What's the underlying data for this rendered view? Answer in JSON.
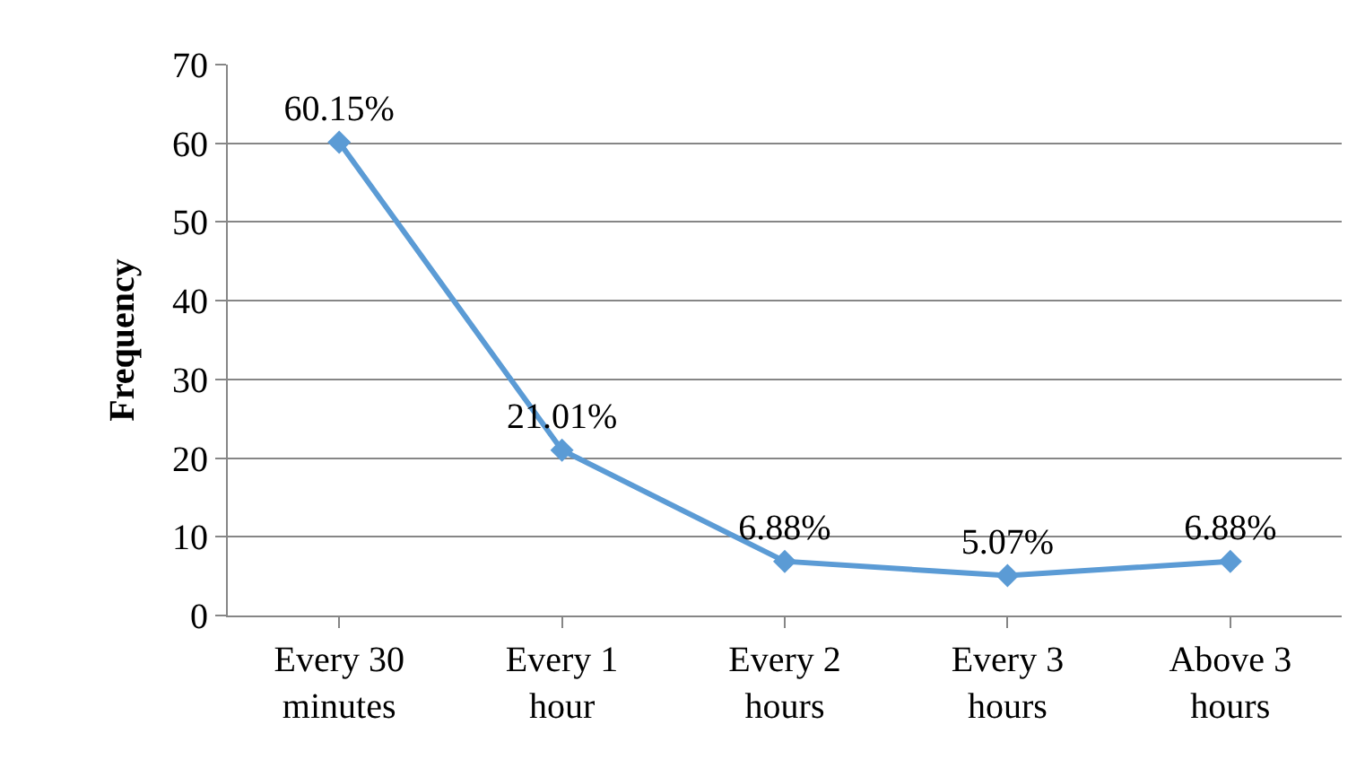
{
  "chart_data": {
    "type": "line",
    "ylabel": "Frequency",
    "categories": [
      "Every 30\nminutes",
      "Every 1\nhour",
      "Every 2\nhours",
      "Every 3\nhours",
      "Above 3\nhours"
    ],
    "series": [
      {
        "color": "#5b9bd5",
        "values": [
          60.15,
          21.01,
          6.88,
          5.07,
          6.88
        ],
        "value_labels": [
          "60.15%",
          "21.01%",
          "6.88%",
          "5.07%",
          "6.88%"
        ]
      }
    ],
    "ylim": [
      0,
      70
    ],
    "yticks": [
      0,
      10,
      20,
      30,
      40,
      50,
      60,
      70
    ],
    "grid": "y",
    "legend": false,
    "marker": "diamond",
    "line_style": "solid"
  }
}
